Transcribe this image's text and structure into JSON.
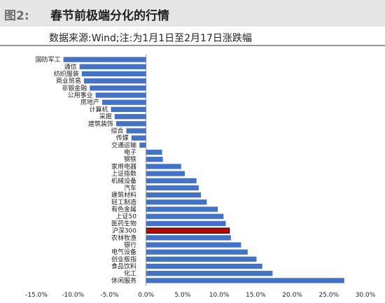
{
  "header": {
    "figure_label": "图2:",
    "title": "春节前极端分化的行情"
  },
  "subtitle": "数据来源:Wind;注:为1月1日至2月17日涨跌幅",
  "chart_data": {
    "type": "bar",
    "orientation": "horizontal",
    "title": "",
    "xlabel": "",
    "ylabel": "",
    "xlim": [
      -15,
      30
    ],
    "x_ticks": [
      -15,
      -10,
      -5,
      0,
      5,
      10,
      15,
      20,
      25,
      30
    ],
    "x_tick_labels": [
      "-15.0%",
      "-10.0%",
      "-5.0%",
      "0.0%",
      "5.0%",
      "10.0%",
      "15.0%",
      "20.0%",
      "25.0%",
      "30.0%"
    ],
    "grid": false,
    "legend": "none",
    "bar_color": "#4472c4",
    "highlight_color": "#c00000",
    "highlight_category": "沪深300",
    "categories": [
      "国防军工",
      "通信",
      "纺织服装",
      "商业贸易",
      "非银金融",
      "公用事业",
      "房地产",
      "计算机",
      "采掘",
      "建筑装饰",
      "综合",
      "传媒",
      "交通运输",
      "电子",
      "钢铁",
      "家用电器",
      "上证指数",
      "机械设备",
      "汽车",
      "建筑材料",
      "轻工制造",
      "有色金属",
      "上证50",
      "医药生物",
      "沪深300",
      "农林牧渔",
      "银行",
      "电气设备",
      "创业板指",
      "食品饮料",
      "化工",
      "休闲服务"
    ],
    "values": [
      -11.3,
      -9.1,
      -8.8,
      -8.5,
      -7.7,
      -6.9,
      -6.0,
      -4.8,
      -4.3,
      -4.1,
      -2.7,
      -2.0,
      -0.9,
      2.2,
      2.3,
      4.8,
      5.3,
      6.9,
      7.2,
      7.5,
      8.3,
      9.8,
      10.6,
      10.9,
      11.4,
      11.6,
      13.0,
      13.9,
      15.1,
      15.9,
      17.3,
      27.1
    ]
  }
}
